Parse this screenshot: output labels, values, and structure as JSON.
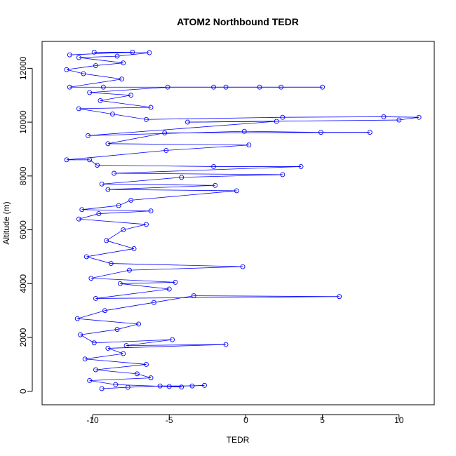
{
  "chart_data": {
    "type": "scatter",
    "title": "ATOM2 Northbound TEDR",
    "xlabel": "TEDR",
    "ylabel": "Altitude (m)",
    "xlim": [
      -13.3,
      12.3
    ],
    "ylim": [
      -500,
      13000
    ],
    "x_ticks": [
      -10,
      -5,
      0,
      5,
      10
    ],
    "x_tick_labels": [
      "-10",
      "-5",
      "0",
      "5",
      "10"
    ],
    "y_ticks": [
      0,
      2000,
      4000,
      6000,
      8000,
      10000,
      12000
    ],
    "y_tick_labels": [
      "0",
      "2000",
      "4000",
      "6000",
      "8000",
      "10000",
      "12000"
    ],
    "grid": false,
    "legend": "none",
    "marker": "open-circle",
    "connected": true,
    "series": [
      {
        "color": "#0000ff",
        "points": [
          [
            -9.4,
            100
          ],
          [
            -7.7,
            150
          ],
          [
            -5.6,
            200
          ],
          [
            -3.5,
            200
          ],
          [
            -2.7,
            220
          ],
          [
            -5.0,
            180
          ],
          [
            -4.2,
            160
          ],
          [
            -8.5,
            250
          ],
          [
            -10.2,
            400
          ],
          [
            -6.2,
            500
          ],
          [
            -7.1,
            650
          ],
          [
            -9.8,
            800
          ],
          [
            -6.5,
            1000
          ],
          [
            -10.5,
            1200
          ],
          [
            -8.0,
            1400
          ],
          [
            -9.0,
            1600
          ],
          [
            -1.3,
            1740
          ],
          [
            -7.8,
            1700
          ],
          [
            -4.8,
            1920
          ],
          [
            -9.9,
            1800
          ],
          [
            -10.8,
            2100
          ],
          [
            -8.4,
            2300
          ],
          [
            -7.0,
            2500
          ],
          [
            -11.0,
            2700
          ],
          [
            -9.2,
            3000
          ],
          [
            -6.0,
            3300
          ],
          [
            -3.4,
            3550
          ],
          [
            6.1,
            3520
          ],
          [
            -9.8,
            3450
          ],
          [
            -5.0,
            3800
          ],
          [
            -8.2,
            4000
          ],
          [
            -4.6,
            4050
          ],
          [
            -10.1,
            4200
          ],
          [
            -7.6,
            4500
          ],
          [
            -0.2,
            4630
          ],
          [
            -8.8,
            4750
          ],
          [
            -10.4,
            5000
          ],
          [
            -7.3,
            5300
          ],
          [
            -9.1,
            5600
          ],
          [
            -8.0,
            6000
          ],
          [
            -6.5,
            6200
          ],
          [
            -10.9,
            6400
          ],
          [
            -9.6,
            6600
          ],
          [
            -6.2,
            6700
          ],
          [
            -10.7,
            6750
          ],
          [
            -8.3,
            6900
          ],
          [
            -7.5,
            7100
          ],
          [
            -0.6,
            7450
          ],
          [
            -9.0,
            7500
          ],
          [
            -2.0,
            7650
          ],
          [
            -9.4,
            7700
          ],
          [
            -4.2,
            7950
          ],
          [
            2.4,
            8050
          ],
          [
            -8.6,
            8100
          ],
          [
            3.6,
            8350
          ],
          [
            -2.1,
            8350
          ],
          [
            -9.7,
            8400
          ],
          [
            -10.2,
            8600
          ],
          [
            -11.7,
            8600
          ],
          [
            -5.2,
            8950
          ],
          [
            0.2,
            9150
          ],
          [
            -9.0,
            9200
          ],
          [
            -5.3,
            9600
          ],
          [
            8.1,
            9620
          ],
          [
            4.9,
            9620
          ],
          [
            -0.1,
            9660
          ],
          [
            -10.3,
            9500
          ],
          [
            2.0,
            10030
          ],
          [
            -3.8,
            10000
          ],
          [
            10.0,
            10080
          ],
          [
            11.3,
            10180
          ],
          [
            9.0,
            10200
          ],
          [
            2.4,
            10180
          ],
          [
            -6.5,
            10100
          ],
          [
            -8.7,
            10300
          ],
          [
            -10.9,
            10500
          ],
          [
            -6.2,
            10550
          ],
          [
            -9.5,
            10800
          ],
          [
            -7.5,
            11000
          ],
          [
            -10.2,
            11100
          ],
          [
            -5.1,
            11300
          ],
          [
            -2.1,
            11300
          ],
          [
            -1.3,
            11300
          ],
          [
            0.9,
            11300
          ],
          [
            2.3,
            11300
          ],
          [
            5.0,
            11300
          ],
          [
            -9.3,
            11300
          ],
          [
            -11.5,
            11300
          ],
          [
            -8.1,
            11600
          ],
          [
            -10.6,
            11800
          ],
          [
            -11.7,
            11950
          ],
          [
            -9.8,
            12100
          ],
          [
            -8.0,
            12200
          ],
          [
            -10.9,
            12400
          ],
          [
            -8.4,
            12450
          ],
          [
            -6.3,
            12580
          ],
          [
            -9.9,
            12600
          ],
          [
            -7.4,
            12600
          ],
          [
            -11.5,
            12500
          ]
        ]
      }
    ]
  }
}
